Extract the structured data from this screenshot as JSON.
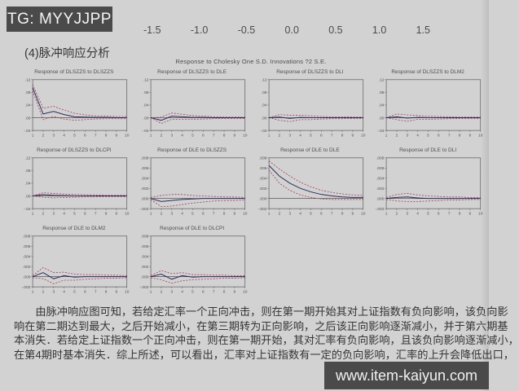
{
  "watermarks": {
    "tg": "TG: MYYJJPP",
    "site": "www.item-kaiyun.com"
  },
  "top_axis": {
    "ticks": [
      "-1.5",
      "-1.0",
      "-0.5",
      "0.0",
      "0.5",
      "1.0",
      "1.5"
    ]
  },
  "section": {
    "heading": "(4)脉冲响应分析"
  },
  "figure": {
    "title": "Response to Cholesky One S.D. Innovations ?2 S.E."
  },
  "chart_data": [
    {
      "type": "line",
      "title": "Response of DLSZZS to DLSZZS",
      "x": [
        1,
        2,
        3,
        4,
        5,
        6,
        7,
        8,
        9,
        10
      ],
      "ylim": [
        -0.04,
        0.12
      ],
      "yticks": [
        {
          "v": 0.12,
          "label": ".12"
        },
        {
          "v": 0.08,
          "label": ".08"
        },
        {
          "v": 0.04,
          "label": ".04"
        },
        {
          "v": 0.0,
          "label": ".00"
        },
        {
          "v": -0.04,
          "label": "-.04"
        }
      ],
      "series": [
        {
          "name": "response",
          "values": [
            0.095,
            0.012,
            0.02,
            0.01,
            0.003,
            0.002,
            0.001,
            0.001,
            0.0,
            0.0
          ]
        },
        {
          "name": "upper_band",
          "values": [
            0.105,
            0.03,
            0.036,
            0.024,
            0.014,
            0.009,
            0.006,
            0.005,
            0.004,
            0.004
          ]
        },
        {
          "name": "lower_band",
          "values": [
            0.085,
            -0.006,
            0.004,
            -0.004,
            -0.008,
            -0.006,
            -0.004,
            -0.003,
            -0.003,
            -0.003
          ]
        }
      ]
    },
    {
      "type": "line",
      "title": "Response of DLSZZS to DLE",
      "x": [
        1,
        2,
        3,
        4,
        5,
        6,
        7,
        8,
        9,
        10
      ],
      "ylim": [
        -0.04,
        0.12
      ],
      "yticks": [
        {
          "v": 0.12,
          "label": ".12"
        },
        {
          "v": 0.08,
          "label": ".08"
        },
        {
          "v": 0.04,
          "label": ".04"
        },
        {
          "v": 0.0,
          "label": ".00"
        },
        {
          "v": -0.04,
          "label": "-.04"
        }
      ],
      "series": [
        {
          "name": "response",
          "values": [
            0.0,
            -0.008,
            0.005,
            0.003,
            0.001,
            0.001,
            0.0,
            0.0,
            0.0,
            0.0
          ]
        },
        {
          "name": "upper_band",
          "values": [
            0.0,
            0.002,
            0.015,
            0.011,
            0.007,
            0.005,
            0.003,
            0.002,
            0.002,
            0.002
          ]
        },
        {
          "name": "lower_band",
          "values": [
            0.0,
            -0.018,
            -0.005,
            -0.005,
            -0.005,
            -0.004,
            -0.003,
            -0.002,
            -0.002,
            -0.002
          ]
        }
      ]
    },
    {
      "type": "line",
      "title": "Response of DLSZZS to DLI",
      "x": [
        1,
        2,
        3,
        4,
        5,
        6,
        7,
        8,
        9,
        10
      ],
      "ylim": [
        -0.04,
        0.12
      ],
      "yticks": [
        {
          "v": 0.12,
          "label": ".12"
        },
        {
          "v": 0.08,
          "label": ".08"
        },
        {
          "v": 0.04,
          "label": ".04"
        },
        {
          "v": 0.0,
          "label": ".00"
        },
        {
          "v": -0.04,
          "label": "-.04"
        }
      ],
      "series": [
        {
          "name": "response",
          "values": [
            0.0,
            0.002,
            -0.002,
            0.001,
            0.0,
            0.0,
            0.0,
            0.0,
            0.0,
            0.0
          ]
        },
        {
          "name": "upper_band",
          "values": [
            0.0,
            0.01,
            0.008,
            0.008,
            0.006,
            0.004,
            0.003,
            0.003,
            0.002,
            0.002
          ]
        },
        {
          "name": "lower_band",
          "values": [
            0.0,
            -0.008,
            -0.012,
            -0.006,
            -0.006,
            -0.004,
            -0.003,
            -0.003,
            -0.002,
            -0.002
          ]
        }
      ]
    },
    {
      "type": "line",
      "title": "Response of DLSZZS to DLM2",
      "x": [
        1,
        2,
        3,
        4,
        5,
        6,
        7,
        8,
        9,
        10
      ],
      "ylim": [
        -0.04,
        0.12
      ],
      "yticks": [
        {
          "v": 0.12,
          "label": ".12"
        },
        {
          "v": 0.08,
          "label": ".08"
        },
        {
          "v": 0.04,
          "label": ".04"
        },
        {
          "v": 0.0,
          "label": ".00"
        },
        {
          "v": -0.04,
          "label": "-.04"
        }
      ],
      "series": [
        {
          "name": "response",
          "values": [
            0.0,
            0.003,
            -0.001,
            0.001,
            0.0,
            0.0,
            0.0,
            0.0,
            0.0,
            0.0
          ]
        },
        {
          "name": "upper_band",
          "values": [
            0.0,
            0.012,
            0.009,
            0.007,
            0.005,
            0.004,
            0.003,
            0.002,
            0.002,
            0.002
          ]
        },
        {
          "name": "lower_band",
          "values": [
            0.0,
            -0.006,
            -0.011,
            -0.005,
            -0.005,
            -0.004,
            -0.003,
            -0.002,
            -0.002,
            -0.002
          ]
        }
      ]
    },
    {
      "type": "line",
      "title": "Response of DLSZZS to DLCPI",
      "x": [
        1,
        2,
        3,
        4,
        5,
        6,
        7,
        8,
        9,
        10
      ],
      "ylim": [
        -0.04,
        0.12
      ],
      "yticks": [
        {
          "v": 0.12,
          "label": ".12"
        },
        {
          "v": 0.08,
          "label": ".08"
        },
        {
          "v": 0.04,
          "label": ".04"
        },
        {
          "v": 0.0,
          "label": ".00"
        },
        {
          "v": -0.04,
          "label": "-.04"
        }
      ],
      "series": [
        {
          "name": "response",
          "values": [
            0.0,
            0.004,
            0.002,
            0.001,
            0.0,
            0.0,
            0.0,
            0.0,
            0.0,
            0.0
          ]
        },
        {
          "name": "upper_band",
          "values": [
            0.0,
            0.01,
            0.008,
            0.006,
            0.005,
            0.004,
            0.003,
            0.002,
            0.002,
            0.002
          ]
        },
        {
          "name": "lower_band",
          "values": [
            0.0,
            -0.004,
            -0.006,
            -0.005,
            -0.004,
            -0.003,
            -0.003,
            -0.002,
            -0.002,
            -0.002
          ]
        }
      ]
    },
    {
      "type": "line",
      "title": "Response of DLE to DLSZZS",
      "x": [
        1,
        2,
        3,
        4,
        5,
        6,
        7,
        8,
        9,
        10
      ],
      "ylim": [
        -0.002,
        0.008
      ],
      "yticks": [
        {
          "v": 0.008,
          "label": ".008"
        },
        {
          "v": 0.006,
          "label": ".006"
        },
        {
          "v": 0.004,
          "label": ".004"
        },
        {
          "v": 0.002,
          "label": ".002"
        },
        {
          "v": 0.0,
          "label": ".000"
        },
        {
          "v": -0.002,
          "label": "-.002"
        }
      ],
      "series": [
        {
          "name": "response",
          "values": [
            0.0,
            -0.0006,
            -0.0004,
            -0.0002,
            -0.0001,
            0.0,
            0.0,
            0.0,
            0.0,
            0.0
          ]
        },
        {
          "name": "upper_band",
          "values": [
            0.0002,
            0.0006,
            0.0008,
            0.0008,
            0.0006,
            0.0005,
            0.0004,
            0.0003,
            0.0003,
            0.0002
          ]
        },
        {
          "name": "lower_band",
          "values": [
            -0.0002,
            -0.0016,
            -0.0015,
            -0.0012,
            -0.0009,
            -0.0007,
            -0.0005,
            -0.0004,
            -0.0004,
            -0.0003
          ]
        }
      ]
    },
    {
      "type": "line",
      "title": "Response of DLE to DLE",
      "x": [
        1,
        2,
        3,
        4,
        5,
        6,
        7,
        8,
        9,
        10
      ],
      "ylim": [
        -0.002,
        0.008
      ],
      "yticks": [
        {
          "v": 0.008,
          "label": ".008"
        },
        {
          "v": 0.006,
          "label": ".006"
        },
        {
          "v": 0.004,
          "label": ".004"
        },
        {
          "v": 0.002,
          "label": ".002"
        },
        {
          "v": 0.0,
          "label": ".000"
        },
        {
          "v": -0.002,
          "label": "-.002"
        }
      ],
      "series": [
        {
          "name": "response",
          "values": [
            0.0065,
            0.0044,
            0.003,
            0.002,
            0.0013,
            0.0008,
            0.0005,
            0.0003,
            0.0002,
            0.0002
          ]
        },
        {
          "name": "upper_band",
          "values": [
            0.0074,
            0.0058,
            0.0044,
            0.0032,
            0.0023,
            0.0016,
            0.0012,
            0.0009,
            0.0007,
            0.0006
          ]
        },
        {
          "name": "lower_band",
          "values": [
            0.0056,
            0.003,
            0.0016,
            0.0007,
            0.0002,
            -0.0001,
            -0.0002,
            -0.0002,
            -0.0002,
            -0.0002
          ]
        }
      ]
    },
    {
      "type": "line",
      "title": "Response of DLE to DLI",
      "x": [
        1,
        2,
        3,
        4,
        5,
        6,
        7,
        8,
        9,
        10
      ],
      "ylim": [
        -0.002,
        0.008
      ],
      "yticks": [
        {
          "v": 0.008,
          "label": ".008"
        },
        {
          "v": 0.006,
          "label": ".006"
        },
        {
          "v": 0.004,
          "label": ".004"
        },
        {
          "v": 0.002,
          "label": ".002"
        },
        {
          "v": 0.0,
          "label": ".000"
        },
        {
          "v": -0.002,
          "label": "-.002"
        }
      ],
      "series": [
        {
          "name": "response",
          "values": [
            0.0,
            0.0002,
            0.0003,
            0.0001,
            0.0,
            0.0,
            0.0,
            0.0,
            0.0,
            0.0
          ]
        },
        {
          "name": "upper_band",
          "values": [
            0.0002,
            0.0008,
            0.001,
            0.0007,
            0.0005,
            0.0004,
            0.0003,
            0.0003,
            0.0002,
            0.0002
          ]
        },
        {
          "name": "lower_band",
          "values": [
            -0.0002,
            -0.0005,
            -0.0006,
            -0.0006,
            -0.0005,
            -0.0004,
            -0.0003,
            -0.0003,
            -0.0002,
            -0.0002
          ]
        }
      ]
    },
    {
      "type": "line",
      "title": "Response of DLE to DLM2",
      "x": [
        1,
        2,
        3,
        4,
        5,
        6,
        7,
        8,
        9,
        10
      ],
      "ylim": [
        -0.002,
        0.008
      ],
      "yticks": [
        {
          "v": 0.008,
          "label": ".008"
        },
        {
          "v": 0.006,
          "label": ".006"
        },
        {
          "v": 0.004,
          "label": ".004"
        },
        {
          "v": 0.002,
          "label": ".002"
        },
        {
          "v": 0.0,
          "label": ".000"
        },
        {
          "v": -0.002,
          "label": "-.002"
        }
      ],
      "series": [
        {
          "name": "response",
          "values": [
            0.0,
            0.0008,
            -0.0004,
            0.0002,
            -0.0001,
            0.0,
            0.0,
            0.0,
            0.0,
            0.0
          ]
        },
        {
          "name": "upper_band",
          "values": [
            0.0002,
            0.0018,
            0.0008,
            0.0009,
            0.0005,
            0.0004,
            0.0004,
            0.0003,
            0.0003,
            0.0002
          ]
        },
        {
          "name": "lower_band",
          "values": [
            -0.0002,
            -0.0004,
            -0.0014,
            -0.0007,
            -0.0007,
            -0.0005,
            -0.0004,
            -0.0003,
            -0.0003,
            -0.0002
          ]
        }
      ]
    },
    {
      "type": "line",
      "title": "Response of DLE to DLCPI",
      "x": [
        1,
        2,
        3,
        4,
        5,
        6,
        7,
        8,
        9,
        10
      ],
      "ylim": [
        -0.002,
        0.008
      ],
      "yticks": [
        {
          "v": 0.008,
          "label": ".008"
        },
        {
          "v": 0.006,
          "label": ".006"
        },
        {
          "v": 0.004,
          "label": ".004"
        },
        {
          "v": 0.002,
          "label": ".002"
        },
        {
          "v": 0.0,
          "label": ".000"
        },
        {
          "v": -0.002,
          "label": "-.002"
        }
      ],
      "series": [
        {
          "name": "response",
          "values": [
            0.0,
            0.0005,
            -0.0005,
            0.0002,
            -0.0001,
            0.0,
            0.0,
            0.0,
            0.0,
            0.0
          ]
        },
        {
          "name": "upper_band",
          "values": [
            0.0002,
            0.0012,
            0.0006,
            0.0008,
            0.0004,
            0.0004,
            0.0003,
            0.0003,
            0.0002,
            0.0002
          ]
        },
        {
          "name": "lower_band",
          "values": [
            -0.0002,
            -0.0006,
            -0.0013,
            -0.0008,
            -0.0006,
            -0.0005,
            -0.0004,
            -0.0003,
            -0.0003,
            -0.0002
          ]
        }
      ]
    }
  ],
  "analysis": {
    "lines": [
      "由脉冲响应图可知，若给定汇率一个正向冲击，则在第一期开始其对上证指数有负向影响，该负向影",
      "响在第二期达到最大，之后开始减小，在第三期转为正向影响，之后该正向影响逐渐减小，并于第六期基",
      "本消失．若给定上证指数一个正向冲击，则在第一期开始，其对汇率有负向影响，且该负向影响逐渐减小，",
      "在第4期时基本消失．综上所述，可以看出，汇率对上证指数有一定的负向影响，汇率的上升会降低出口，"
    ]
  },
  "colors": {
    "page_bg": "#d2d2d2",
    "watermark_bg": "#4a4a4a",
    "response_line": "#2c2c5e",
    "band_line": "#a63d5a",
    "axis": "#555555"
  }
}
